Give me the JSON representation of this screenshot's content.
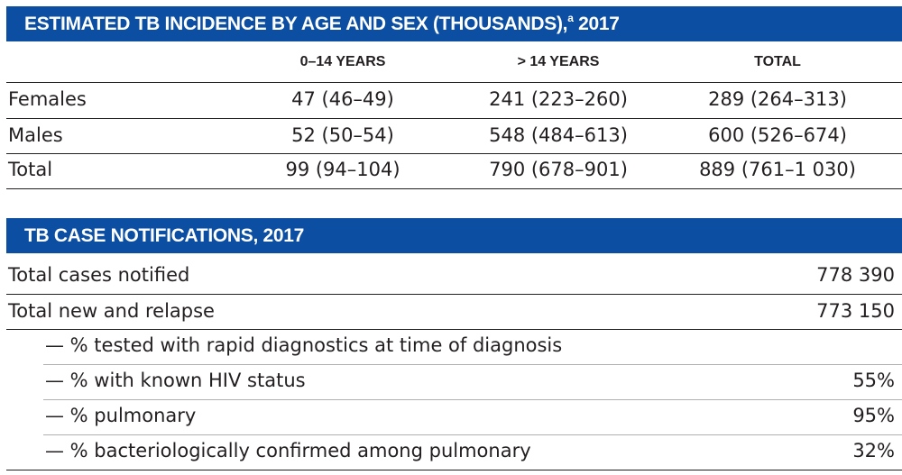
{
  "incidence": {
    "title": "ESTIMATED TB INCIDENCE BY AGE AND SEX (THOUSANDS),",
    "title_sup": "a",
    "title_year": " 2017",
    "columns": [
      "0–14 YEARS",
      "> 14 YEARS",
      "TOTAL"
    ],
    "rows": [
      {
        "label": "Females",
        "values": [
          "47 (46–49)",
          "241 (223–260)",
          "289 (264–313)"
        ]
      },
      {
        "label": "Males",
        "values": [
          "52 (50–54)",
          "548 (484–613)",
          "600 (526–674)"
        ]
      },
      {
        "label": "Total",
        "values": [
          "99 (94–104)",
          "790 (678–901)",
          "889 (761–1 030)"
        ]
      }
    ]
  },
  "notifications": {
    "title": "TB CASE NOTIFICATIONS, 2017",
    "rows": [
      {
        "label": "Total cases notified",
        "value": "778 390"
      },
      {
        "label": "Total new and relapse",
        "value": "773 150"
      },
      {
        "label": "— % tested with rapid diagnostics at time of diagnosis",
        "value": ""
      },
      {
        "label": "— % with known HIV status",
        "value": "55%"
      },
      {
        "label": "— % pulmonary",
        "value": "95%"
      },
      {
        "label": "— % bacteriologically confirmed among pulmonary",
        "value": "32%"
      }
    ]
  }
}
